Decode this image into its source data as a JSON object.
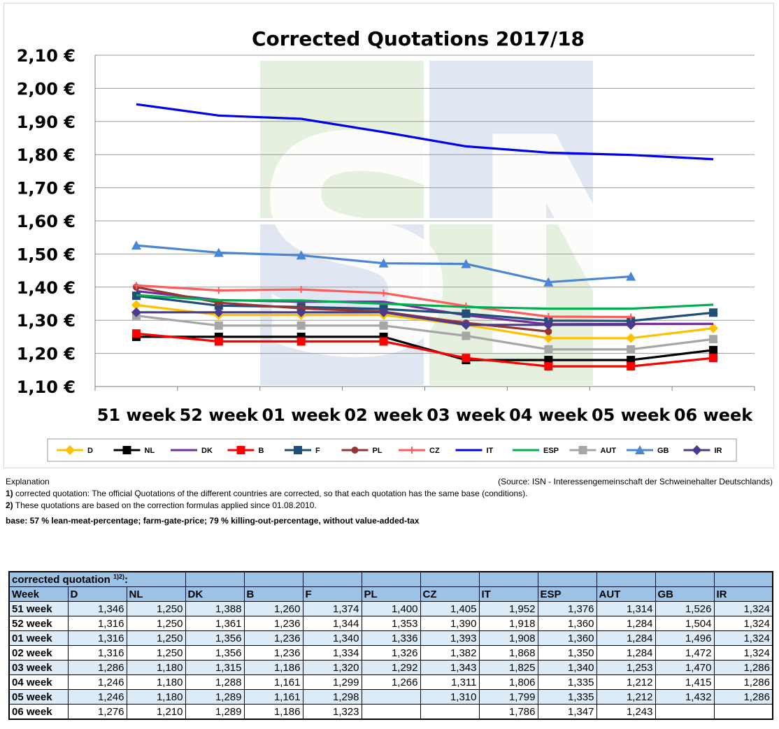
{
  "chart_data": {
    "type": "line",
    "title": "Corrected Quotations 2017/18",
    "categories": [
      "51 week",
      "52 week",
      "01 week",
      "02 week",
      "03 week",
      "04 week",
      "05 week",
      "06 week"
    ],
    "y_ticks": [
      "2,10 €",
      "2,00 €",
      "1,90 €",
      "1,80 €",
      "1,70 €",
      "1,60 €",
      "1,50 €",
      "1,40 €",
      "1,30 €",
      "1,20 €",
      "1,10 €"
    ],
    "ylim": [
      1.1,
      2.1
    ],
    "grid": true,
    "legend_position": "bottom",
    "series": [
      {
        "name": "D",
        "color": "#ffc000",
        "marker": "diamond",
        "values": [
          1.346,
          1.316,
          1.316,
          1.316,
          1.286,
          1.246,
          1.246,
          1.276
        ]
      },
      {
        "name": "NL",
        "color": "#000000",
        "marker": "square",
        "values": [
          1.25,
          1.25,
          1.25,
          1.25,
          1.18,
          1.18,
          1.18,
          1.21
        ]
      },
      {
        "name": "DK",
        "color": "#7030a0",
        "marker": "none",
        "values": [
          1.388,
          1.361,
          1.356,
          1.356,
          1.315,
          1.288,
          1.289,
          1.289
        ]
      },
      {
        "name": "B",
        "color": "#ff0000",
        "marker": "square",
        "values": [
          1.26,
          1.236,
          1.236,
          1.236,
          1.186,
          1.161,
          1.161,
          1.186
        ]
      },
      {
        "name": "F",
        "color": "#1f4e79",
        "marker": "square",
        "values": [
          1.374,
          1.344,
          1.34,
          1.334,
          1.32,
          1.299,
          1.298,
          1.323
        ]
      },
      {
        "name": "PL",
        "color": "#943634",
        "marker": "circle",
        "values": [
          1.4,
          1.353,
          1.336,
          1.326,
          1.292,
          1.266,
          null,
          null
        ]
      },
      {
        "name": "CZ",
        "color": "#ff5b5b",
        "marker": "plus",
        "values": [
          1.405,
          1.39,
          1.393,
          1.382,
          1.343,
          1.311,
          1.31,
          null
        ]
      },
      {
        "name": "IT",
        "color": "#0000ee",
        "marker": "none",
        "values": [
          1.952,
          1.918,
          1.908,
          1.868,
          1.825,
          1.806,
          1.799,
          1.786
        ]
      },
      {
        "name": "ESP",
        "color": "#00b050",
        "marker": "none",
        "values": [
          1.376,
          1.36,
          1.36,
          1.35,
          1.34,
          1.335,
          1.335,
          1.347
        ]
      },
      {
        "name": "AUT",
        "color": "#a6a6a6",
        "marker": "square",
        "values": [
          1.314,
          1.284,
          1.284,
          1.284,
          1.253,
          1.212,
          1.212,
          1.243
        ]
      },
      {
        "name": "GB",
        "color": "#4a86d4",
        "marker": "triangle",
        "values": [
          1.526,
          1.504,
          1.496,
          1.472,
          1.47,
          1.415,
          1.432,
          null
        ]
      },
      {
        "name": "IR",
        "color": "#4b3b8f",
        "marker": "diamond",
        "values": [
          1.324,
          1.324,
          1.324,
          1.324,
          1.286,
          1.286,
          1.286,
          null
        ]
      }
    ],
    "watermark": "ISN"
  },
  "explanation": {
    "heading": "Explanation",
    "source": "(Source: ISN - Interessengemeinschaft der Schweinehalter Deutschlands)",
    "note1_marker": "1)",
    "note1_text": " corrected quotation: The official Quotations of the different countries are corrected, so that each quotation has the same base (conditions).",
    "note2_marker": "2)",
    "note2_text": " These quotations are based on the correction formulas applied since 01.08.2010.",
    "base": "base: 57 % lean-meat-percentage; farm-gate-price; 79 % killing-out-percentage, without value-added-tax"
  },
  "table": {
    "caption": "corrected quotation ",
    "caption_sup": "1)2)",
    "caption_colon": ":",
    "headers": [
      "Week",
      "D",
      "NL",
      "DK",
      "B",
      "F",
      "PL",
      "CZ",
      "IT",
      "ESP",
      "AUT",
      "GB",
      "IR"
    ],
    "rows": [
      [
        "51 week",
        "1,346",
        "1,250",
        "1,388",
        "1,260",
        "1,374",
        "1,400",
        "1,405",
        "1,952",
        "1,376",
        "1,314",
        "1,526",
        "1,324"
      ],
      [
        "52 week",
        "1,316",
        "1,250",
        "1,361",
        "1,236",
        "1,344",
        "1,353",
        "1,390",
        "1,918",
        "1,360",
        "1,284",
        "1,504",
        "1,324"
      ],
      [
        "01 week",
        "1,316",
        "1,250",
        "1,356",
        "1,236",
        "1,340",
        "1,336",
        "1,393",
        "1,908",
        "1,360",
        "1,284",
        "1,496",
        "1,324"
      ],
      [
        "02 week",
        "1,316",
        "1,250",
        "1,356",
        "1,236",
        "1,334",
        "1,326",
        "1,382",
        "1,868",
        "1,350",
        "1,284",
        "1,472",
        "1,324"
      ],
      [
        "03 week",
        "1,286",
        "1,180",
        "1,315",
        "1,186",
        "1,320",
        "1,292",
        "1,343",
        "1,825",
        "1,340",
        "1,253",
        "1,470",
        "1,286"
      ],
      [
        "04 week",
        "1,246",
        "1,180",
        "1,288",
        "1,161",
        "1,299",
        "1,266",
        "1,311",
        "1,806",
        "1,335",
        "1,212",
        "1,415",
        "1,286"
      ],
      [
        "05 week",
        "1,246",
        "1,180",
        "1,289",
        "1,161",
        "1,298",
        "",
        "1,310",
        "1,799",
        "1,335",
        "1,212",
        "1,432",
        "1,286"
      ],
      [
        "06 week",
        "1,276",
        "1,210",
        "1,289",
        "1,186",
        "1,323",
        "",
        "",
        "1,786",
        "1,347",
        "1,243",
        "",
        ""
      ]
    ]
  }
}
